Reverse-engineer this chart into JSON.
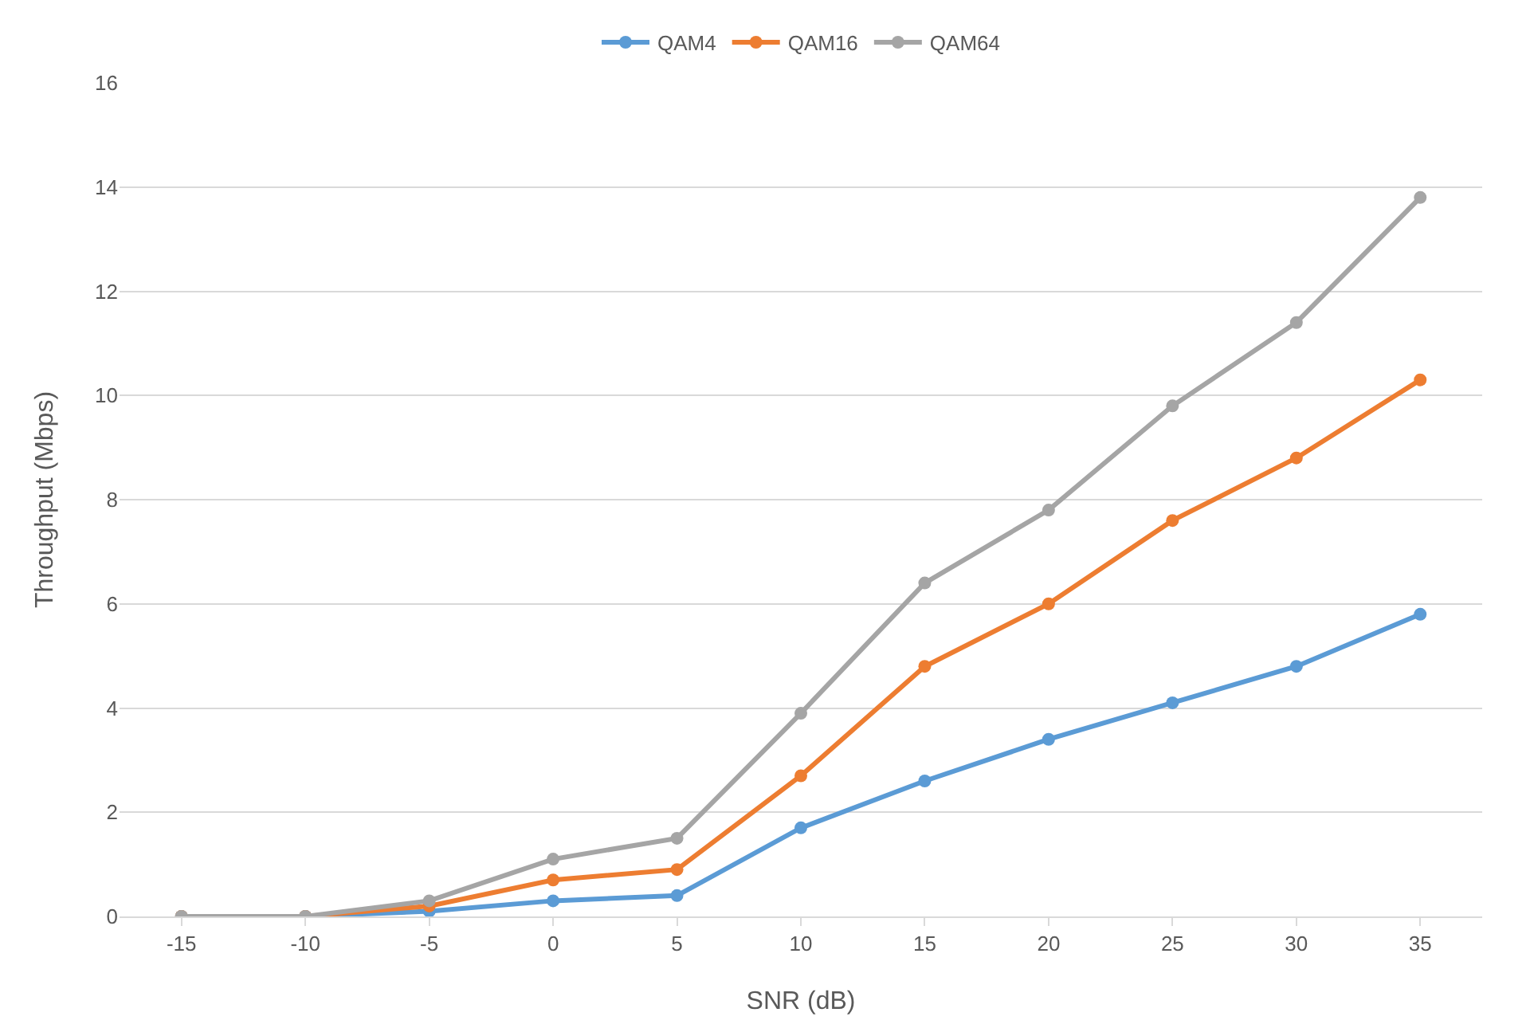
{
  "chart_data": {
    "type": "line",
    "xlabel": "SNR (dB)",
    "ylabel": "Throughput (Mbps)",
    "categories": [
      "-15",
      "-10",
      "-5",
      "0",
      "5",
      "10",
      "15",
      "20",
      "25",
      "30",
      "35"
    ],
    "series": [
      {
        "name": "QAM4",
        "color": "#5b9bd5",
        "values": [
          0,
          0,
          0.1,
          0.3,
          0.4,
          1.7,
          2.6,
          3.4,
          4.1,
          4.8,
          5.8
        ]
      },
      {
        "name": "QAM16",
        "color": "#ed7d31",
        "values": [
          0,
          0,
          0.2,
          0.7,
          0.9,
          2.7,
          4.8,
          6.0,
          7.6,
          8.8,
          10.3
        ]
      },
      {
        "name": "QAM64",
        "color": "#a5a5a5",
        "values": [
          0,
          0,
          0.3,
          1.1,
          1.5,
          3.9,
          6.4,
          7.8,
          9.8,
          11.4,
          13.8
        ]
      }
    ],
    "ylim": [
      0,
      16
    ],
    "yticks": [
      0,
      2,
      4,
      6,
      8,
      10,
      12,
      14,
      16
    ],
    "grid": "y",
    "legend": "top",
    "marker": "circle",
    "line_style": "solid"
  }
}
